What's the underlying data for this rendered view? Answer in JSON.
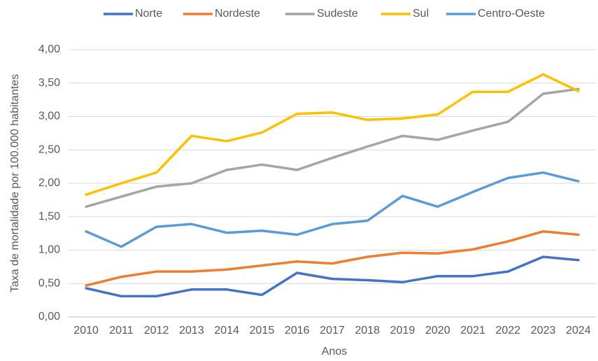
{
  "chart_data": {
    "type": "line",
    "y_axis_label": "Taxa de mortalidade por 100.000 habitantes",
    "x_axis_label": "Anos",
    "categories": [
      "2010",
      "2011",
      "2012",
      "2013",
      "2014",
      "2015",
      "2016",
      "2017",
      "2018",
      "2019",
      "2020",
      "2021",
      "2022",
      "2023",
      "2024"
    ],
    "series": [
      {
        "name": "Norte",
        "color": "#4472c4",
        "values": [
          0.43,
          0.31,
          0.31,
          0.41,
          0.41,
          0.33,
          0.66,
          0.57,
          0.55,
          0.52,
          0.61,
          0.61,
          0.68,
          0.9,
          0.85
        ]
      },
      {
        "name": "Nordeste",
        "color": "#ed7d31",
        "values": [
          0.47,
          0.6,
          0.68,
          0.68,
          0.71,
          0.77,
          0.83,
          0.8,
          0.9,
          0.96,
          0.95,
          1.01,
          1.13,
          1.28,
          1.23
        ]
      },
      {
        "name": "Sudeste",
        "color": "#a5a5a5",
        "values": [
          1.65,
          1.8,
          1.95,
          2.0,
          2.2,
          2.28,
          2.2,
          2.38,
          2.55,
          2.71,
          2.65,
          2.79,
          2.92,
          3.34,
          3.41
        ]
      },
      {
        "name": "Sul",
        "color": "#ffc000",
        "values": [
          1.83,
          2.0,
          2.16,
          2.71,
          2.63,
          2.76,
          3.04,
          3.06,
          2.95,
          2.97,
          3.03,
          3.37,
          3.37,
          3.63,
          3.38
        ]
      },
      {
        "name": "Centro-Oeste",
        "color": "#5b9bd5",
        "values": [
          1.28,
          1.05,
          1.35,
          1.39,
          1.26,
          1.29,
          1.23,
          1.39,
          1.44,
          1.81,
          1.65,
          1.87,
          2.08,
          2.16,
          2.03
        ]
      }
    ],
    "ylim": [
      0,
      4
    ],
    "yticks": [
      {
        "value": 0,
        "label": "0,00"
      },
      {
        "value": 0.5,
        "label": "0,50"
      },
      {
        "value": 1,
        "label": "1,00"
      },
      {
        "value": 1.5,
        "label": "1,50"
      },
      {
        "value": 2,
        "label": "2,00"
      },
      {
        "value": 2.5,
        "label": "2,50"
      },
      {
        "value": 3,
        "label": "3,00"
      },
      {
        "value": 3.5,
        "label": "3,50"
      },
      {
        "value": 4,
        "label": "4,00"
      }
    ],
    "grid": true,
    "legend": "top"
  }
}
